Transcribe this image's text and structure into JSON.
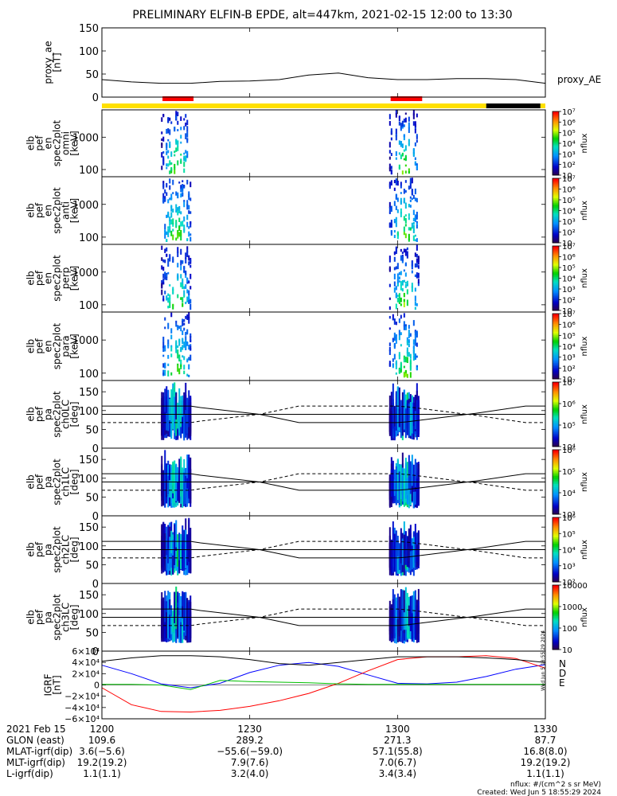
{
  "title": "PRELIMINARY ELFIN-B EPDE, alt=447km, 2021-02-15 12:00 to 13:30",
  "colors": {
    "ae_bar_day": "#ffe000",
    "ae_bar_night": "#000000",
    "science_bar": "#ff0000",
    "igrf_n": "#0000ff",
    "igrf_d": "#ff0000",
    "igrf_e": "#00c000"
  },
  "chart_data": [
    {
      "type": "line",
      "id": "proxy_ae",
      "ylabel_lines": [
        "proxy_ae",
        "[nT]"
      ],
      "legend": "proxy_AE",
      "ylim": [
        0,
        150
      ],
      "yticks": [
        0,
        50,
        100,
        150
      ],
      "x_minutes": [
        0,
        6,
        12,
        18,
        24,
        30,
        36,
        42,
        48,
        54,
        60,
        66,
        72,
        78,
        84,
        90
      ],
      "values": [
        38,
        33,
        30,
        30,
        34,
        35,
        38,
        48,
        52,
        42,
        38,
        38,
        40,
        40,
        38,
        30
      ]
    },
    {
      "type": "heatmap",
      "id": "omni",
      "ylabel_lines": [
        "elb",
        "pef",
        "en",
        "spec2plot",
        "omni",
        "[keV]"
      ],
      "yscale": "log",
      "ylim": [
        60,
        7000
      ],
      "yticks": [
        100,
        1000
      ],
      "cbar_label": "nflux",
      "cbar_scale": "log",
      "cbar_range": [
        10,
        10000000
      ],
      "cbar_ticks": [
        "10",
        "10²",
        "10³",
        "10⁴",
        "10⁵",
        "10⁶",
        "10⁷"
      ]
    },
    {
      "type": "heatmap",
      "id": "anti",
      "ylabel_lines": [
        "elb",
        "pef",
        "en",
        "spec2plot",
        "anti",
        "[keV]"
      ],
      "yscale": "log",
      "ylim": [
        60,
        7000
      ],
      "yticks": [
        100,
        1000
      ],
      "cbar_label": "nflux",
      "cbar_scale": "log",
      "cbar_range": [
        10,
        10000000
      ],
      "cbar_ticks": [
        "10",
        "10²",
        "10³",
        "10⁴",
        "10⁵",
        "10⁶",
        "10⁷"
      ]
    },
    {
      "type": "heatmap",
      "id": "perp",
      "ylabel_lines": [
        "elb",
        "pef",
        "en",
        "spec2plot",
        "perp",
        "[keV]"
      ],
      "yscale": "log",
      "ylim": [
        60,
        7000
      ],
      "yticks": [
        100,
        1000
      ],
      "cbar_label": "nflux",
      "cbar_scale": "log",
      "cbar_range": [
        10,
        10000000
      ],
      "cbar_ticks": [
        "10",
        "10²",
        "10³",
        "10⁴",
        "10⁵",
        "10⁶",
        "10⁷"
      ]
    },
    {
      "type": "heatmap",
      "id": "para",
      "ylabel_lines": [
        "elb",
        "pef",
        "en",
        "spec2plot",
        "para",
        "[keV]"
      ],
      "yscale": "log",
      "ylim": [
        60,
        7000
      ],
      "yticks": [
        100,
        1000
      ],
      "cbar_label": "nflux",
      "cbar_scale": "log",
      "cbar_range": [
        10,
        10000000
      ],
      "cbar_ticks": [
        "10",
        "10²",
        "10³",
        "10⁴",
        "10⁵",
        "10⁶",
        "10⁷"
      ]
    },
    {
      "type": "heatmap",
      "id": "ch0LC",
      "ylabel_lines": [
        "elb",
        "pef",
        "pa",
        "spec2plot",
        "ch0LC",
        "[deg]"
      ],
      "yscale": "linear",
      "ylim": [
        0,
        180
      ],
      "yticks": [
        0,
        50,
        100,
        150
      ],
      "cbar_label": "nflux",
      "cbar_scale": "log",
      "cbar_range": [
        1000,
        10000000
      ],
      "cbar_ticks": [
        "10⁴",
        "10⁵",
        "10⁶",
        "10⁷"
      ]
    },
    {
      "type": "heatmap",
      "id": "ch1LC",
      "ylabel_lines": [
        "elb",
        "pef",
        "pa",
        "spec2plot",
        "ch1LC",
        "[deg]"
      ],
      "yscale": "linear",
      "ylim": [
        0,
        180
      ],
      "yticks": [
        0,
        50,
        100,
        150
      ],
      "cbar_label": "nflux",
      "cbar_scale": "log",
      "cbar_range": [
        100,
        1000000
      ],
      "cbar_ticks": [
        "10³",
        "10⁴",
        "10⁵",
        "10⁶"
      ]
    },
    {
      "type": "heatmap",
      "id": "ch2LC",
      "ylabel_lines": [
        "elb",
        "pef",
        "pa",
        "spec2plot",
        "ch2LC",
        "[deg]"
      ],
      "yscale": "linear",
      "ylim": [
        0,
        180
      ],
      "yticks": [
        0,
        50,
        100,
        150
      ],
      "cbar_label": "nflux",
      "cbar_scale": "log",
      "cbar_range": [
        100,
        1000000
      ],
      "cbar_ticks": [
        "10²",
        "10³",
        "10⁴",
        "10⁵",
        "10⁶"
      ]
    },
    {
      "type": "heatmap",
      "id": "ch3LC",
      "ylabel_lines": [
        "elb",
        "pef",
        "pa",
        "spec2plot",
        "ch3LC",
        "[deg]"
      ],
      "yscale": "linear",
      "ylim": [
        0,
        180
      ],
      "yticks": [
        0,
        50,
        100,
        150
      ],
      "cbar_label": "nflux",
      "cbar_scale": "log",
      "cbar_range": [
        10,
        10000
      ],
      "cbar_ticks": [
        "10",
        "100",
        "1000",
        "10000"
      ]
    },
    {
      "type": "line",
      "id": "igrf",
      "ylabel_lines": [
        "IGRF",
        "[nT]"
      ],
      "ylim": [
        -60000,
        60000
      ],
      "yticks": [
        "6×10⁴",
        "4×10⁴",
        "2×10⁴",
        "0",
        "−2×10⁴",
        "−4×10⁴",
        "−6×10⁴"
      ],
      "ytick_values": [
        60000,
        40000,
        20000,
        0,
        -20000,
        -40000,
        -60000
      ],
      "x_minutes": [
        0,
        6,
        12,
        18,
        24,
        30,
        36,
        42,
        48,
        54,
        60,
        66,
        72,
        78,
        84,
        90
      ],
      "series": [
        {
          "name": "N",
          "values": [
            35000,
            20000,
            2000,
            -5000,
            3000,
            22000,
            35000,
            40000,
            33000,
            18000,
            3000,
            2000,
            5000,
            15000,
            28000,
            36000
          ]
        },
        {
          "name": "D",
          "values": [
            -5000,
            -35000,
            -47000,
            -48000,
            -45000,
            -38000,
            -28000,
            -15000,
            3000,
            25000,
            45000,
            50000,
            50000,
            52000,
            47000,
            30000
          ]
        },
        {
          "name": "E",
          "values": [
            1000,
            1000,
            0,
            -8000,
            8000,
            6000,
            5000,
            4000,
            2000,
            1000,
            1000,
            1000,
            1000,
            1000,
            1000,
            1000
          ]
        },
        {
          "name": "total",
          "values": [
            42000,
            48000,
            52000,
            52000,
            50000,
            45000,
            38000,
            35000,
            40000,
            45000,
            50000,
            50000,
            50000,
            48000,
            45000,
            40000
          ]
        }
      ],
      "legend": [
        "N",
        "D",
        "E"
      ]
    }
  ],
  "x_axis": {
    "tick_labels": [
      "1200",
      "1230",
      "1300",
      "1330"
    ],
    "tick_minutes": [
      0,
      30,
      60,
      90
    ],
    "range_minutes": [
      0,
      90
    ]
  },
  "ephemeris_rows": [
    {
      "label": "2021 Feb 15",
      "values": [
        "1200",
        "1230",
        "1300",
        "1330"
      ]
    },
    {
      "label": "GLON (east)",
      "values": [
        "109.6",
        "289.2",
        "271.3",
        "87.7"
      ]
    },
    {
      "label": "MLAT-igrf(dip)",
      "values": [
        "3.6(−5.6)",
        "−55.6(−59.0)",
        "57.1(55.8)",
        "16.8(8.0)"
      ]
    },
    {
      "label": "MLT-igrf(dip)",
      "values": [
        "19.2(19.2)",
        "7.9(7.6)",
        "7.0(6.7)",
        "19.2(19.2)"
      ]
    },
    {
      "label": "L-igrf(dip)",
      "values": [
        "1.1(1.1)",
        "3.2(4.0)",
        "3.4(3.4)",
        "1.1(1.1)"
      ]
    }
  ],
  "footer": {
    "units": "nflux: #/(cm^2 s sr MeV)",
    "created": "Created: Wed Jun  5 18:55:29 2024",
    "side_stamp": "Wed Jun  5 18:55:29 2024"
  }
}
